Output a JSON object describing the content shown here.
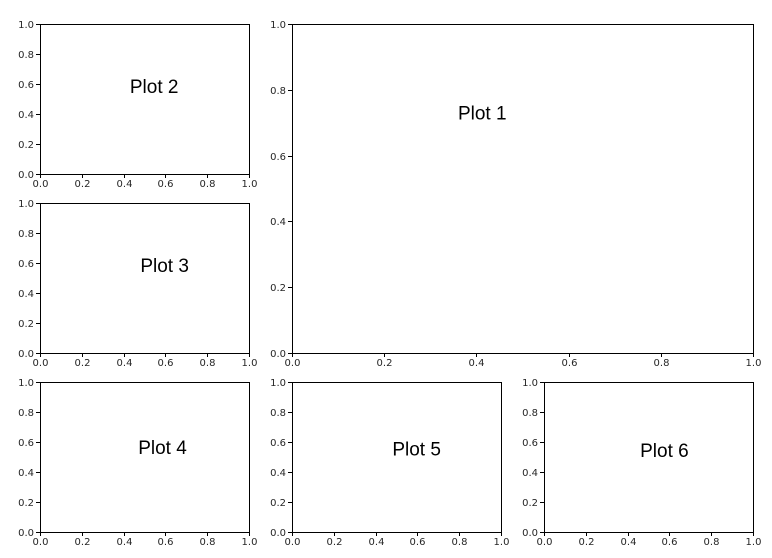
{
  "chart_data": [
    {
      "type": "scatter",
      "title": "",
      "xlabel": "",
      "ylabel": "",
      "xlim": [
        0,
        1
      ],
      "ylim": [
        0,
        1
      ],
      "xticks": [
        "0.0",
        "0.2",
        "0.4",
        "0.6",
        "0.8",
        "1.0"
      ],
      "yticks": [
        "0.0",
        "0.2",
        "0.4",
        "0.6",
        "0.8",
        "1.0"
      ],
      "grid": false,
      "annotations": [
        {
          "text": "Plot 1",
          "x": 0.36,
          "y": 0.71
        }
      ]
    },
    {
      "type": "scatter",
      "title": "",
      "xlabel": "",
      "ylabel": "",
      "xlim": [
        0,
        1
      ],
      "ylim": [
        0,
        1
      ],
      "xticks": [
        "0.0",
        "0.2",
        "0.4",
        "0.6",
        "0.8",
        "1.0"
      ],
      "yticks": [
        "0.0",
        "0.2",
        "0.4",
        "0.6",
        "0.8",
        "1.0"
      ],
      "grid": false,
      "annotations": [
        {
          "text": "Plot 2",
          "x": 0.43,
          "y": 0.54
        }
      ]
    },
    {
      "type": "scatter",
      "title": "",
      "xlabel": "",
      "ylabel": "",
      "xlim": [
        0,
        1
      ],
      "ylim": [
        0,
        1
      ],
      "xticks": [
        "0.0",
        "0.2",
        "0.4",
        "0.6",
        "0.8",
        "1.0"
      ],
      "yticks": [
        "0.0",
        "0.2",
        "0.4",
        "0.6",
        "0.8",
        "1.0"
      ],
      "grid": false,
      "annotations": [
        {
          "text": "Plot 3",
          "x": 0.48,
          "y": 0.54
        }
      ]
    },
    {
      "type": "scatter",
      "title": "",
      "xlabel": "",
      "ylabel": "",
      "xlim": [
        0,
        1
      ],
      "ylim": [
        0,
        1
      ],
      "xticks": [
        "0.0",
        "0.2",
        "0.4",
        "0.6",
        "0.8",
        "1.0"
      ],
      "yticks": [
        "0.0",
        "0.2",
        "0.4",
        "0.6",
        "0.8",
        "1.0"
      ],
      "grid": false,
      "annotations": [
        {
          "text": "Plot 4",
          "x": 0.47,
          "y": 0.52
        }
      ]
    },
    {
      "type": "scatter",
      "title": "",
      "xlabel": "",
      "ylabel": "",
      "xlim": [
        0,
        1
      ],
      "ylim": [
        0,
        1
      ],
      "xticks": [
        "0.0",
        "0.2",
        "0.4",
        "0.6",
        "0.8",
        "1.0"
      ],
      "yticks": [
        "0.0",
        "0.2",
        "0.4",
        "0.6",
        "0.8",
        "1.0"
      ],
      "grid": false,
      "annotations": [
        {
          "text": "Plot 5",
          "x": 0.48,
          "y": 0.51
        }
      ]
    },
    {
      "type": "scatter",
      "title": "",
      "xlabel": "",
      "ylabel": "",
      "xlim": [
        0,
        1
      ],
      "ylim": [
        0,
        1
      ],
      "xticks": [
        "0.0",
        "0.2",
        "0.4",
        "0.6",
        "0.8",
        "1.0"
      ],
      "yticks": [
        "0.0",
        "0.2",
        "0.4",
        "0.6",
        "0.8",
        "1.0"
      ],
      "grid": false,
      "annotations": [
        {
          "text": "Plot 6",
          "x": 0.46,
          "y": 0.5
        }
      ]
    }
  ]
}
